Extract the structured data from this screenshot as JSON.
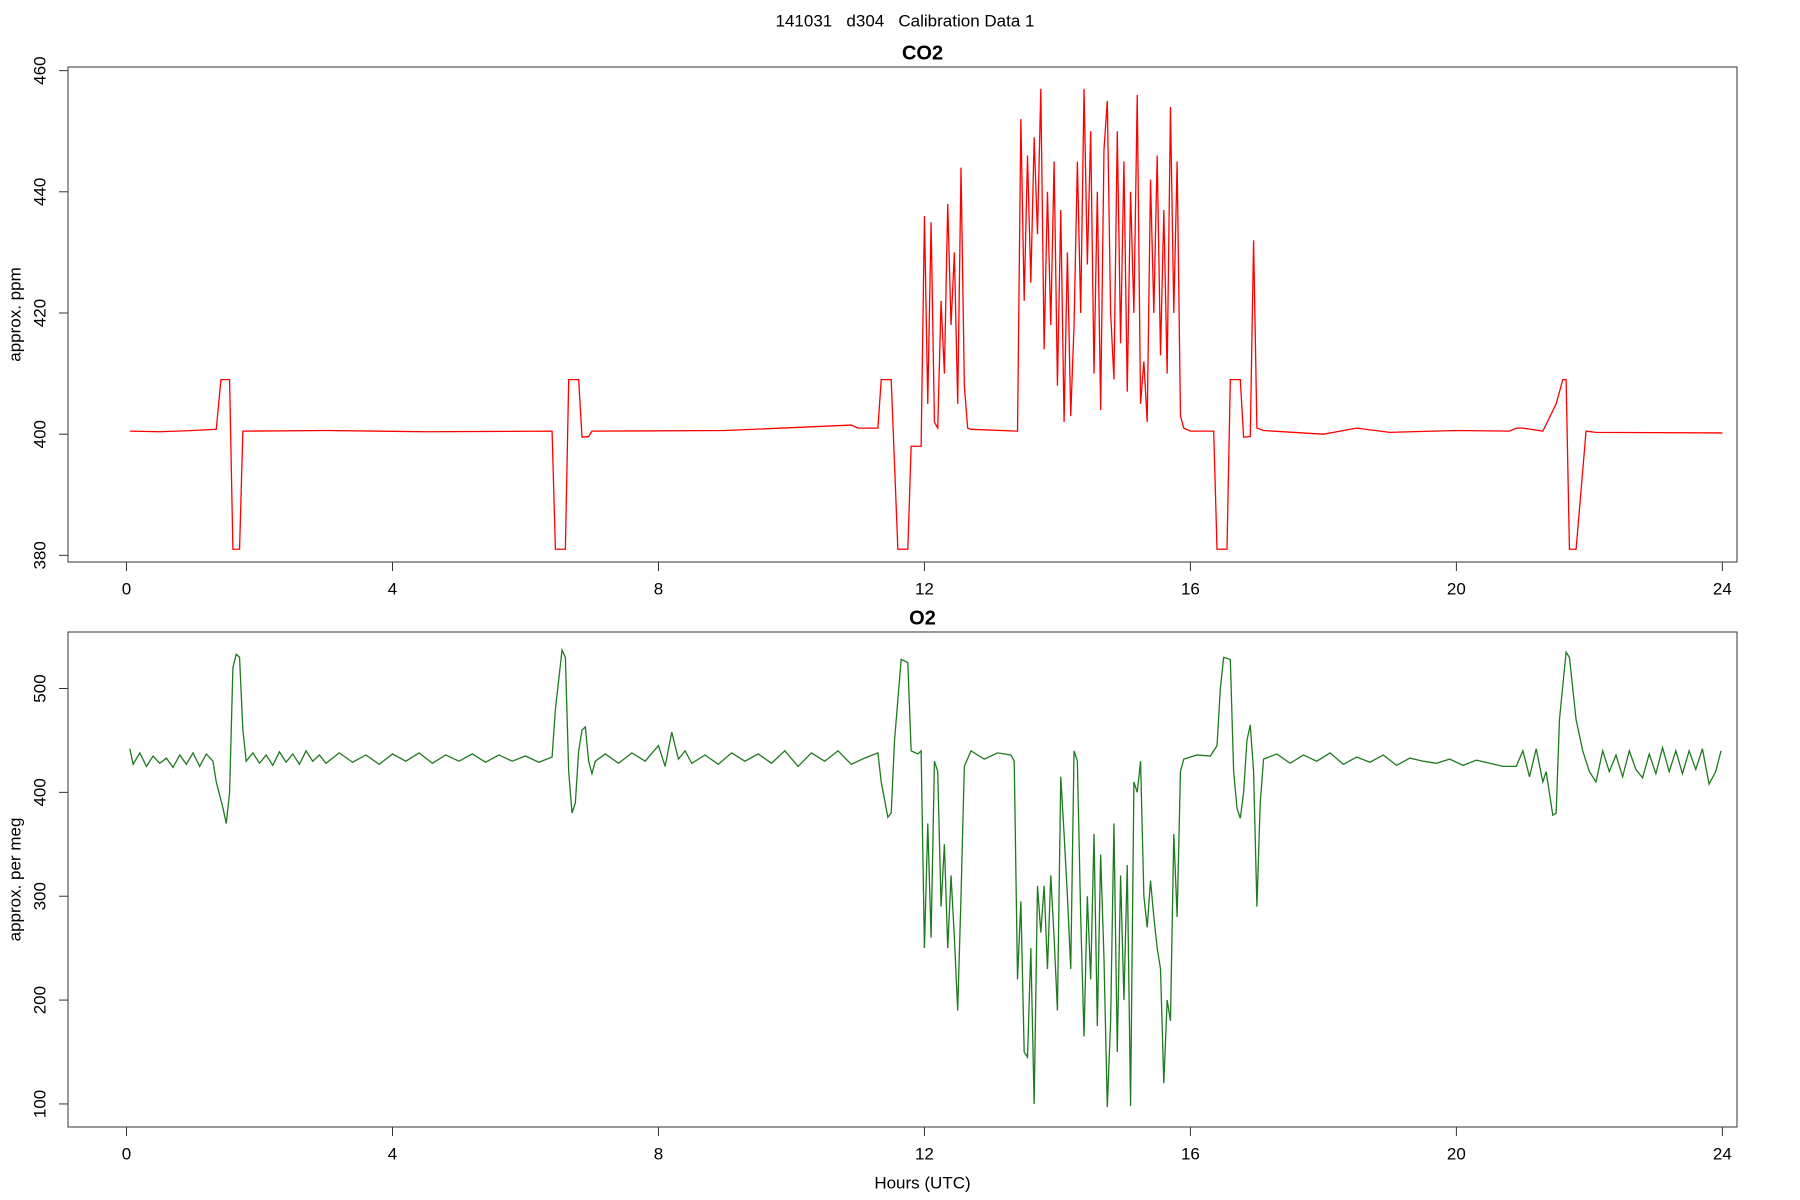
{
  "title": "141031   d304   Calibration Data 1",
  "chart_data": [
    {
      "type": "line",
      "title": "CO2",
      "ylabel": "approx. ppm",
      "color": "#ff0000",
      "xlim": [
        -0.88,
        24.22
      ],
      "xticks": [
        0,
        4,
        8,
        12,
        16,
        20,
        24
      ],
      "ylim": [
        378.9,
        460.6
      ],
      "yticks": [
        380,
        400,
        420,
        440,
        460
      ],
      "x": [
        0.05,
        0.5,
        1.0,
        1.35,
        1.42,
        1.55,
        1.6,
        1.7,
        1.75,
        3.0,
        4.5,
        6.4,
        6.45,
        6.6,
        6.65,
        6.8,
        6.85,
        6.95,
        7.0,
        9.0,
        10.9,
        11.0,
        11.3,
        11.35,
        11.5,
        11.6,
        11.75,
        11.8,
        11.95,
        12.0,
        12.05,
        12.1,
        12.15,
        12.2,
        12.25,
        12.3,
        12.35,
        12.4,
        12.45,
        12.5,
        12.55,
        12.6,
        12.65,
        12.7,
        13.4,
        13.45,
        13.5,
        13.55,
        13.6,
        13.65,
        13.7,
        13.75,
        13.8,
        13.85,
        13.9,
        13.95,
        14.0,
        14.05,
        14.1,
        14.15,
        14.2,
        14.25,
        14.3,
        14.35,
        14.4,
        14.45,
        14.5,
        14.55,
        14.6,
        14.65,
        14.7,
        14.75,
        14.8,
        14.85,
        14.9,
        14.95,
        15.0,
        15.05,
        15.1,
        15.15,
        15.2,
        15.25,
        15.3,
        15.35,
        15.4,
        15.45,
        15.5,
        15.55,
        15.6,
        15.65,
        15.7,
        15.75,
        15.8,
        15.85,
        15.9,
        16.0,
        16.35,
        16.4,
        16.55,
        16.6,
        16.75,
        16.8,
        16.9,
        16.95,
        17.0,
        17.1,
        18.0,
        18.5,
        19.0,
        20.0,
        20.8,
        20.9,
        21.0,
        21.3,
        21.5,
        21.6,
        21.65,
        21.7,
        21.8,
        21.95,
        22.1,
        24.0
      ],
      "values": [
        400.5,
        400.4,
        400.6,
        400.8,
        409,
        409,
        381,
        381,
        400.5,
        400.6,
        400.4,
        400.5,
        381,
        381,
        409,
        409,
        399.5,
        399.6,
        400.5,
        400.6,
        401.5,
        401,
        401,
        409,
        409,
        381,
        381,
        398,
        398,
        436,
        405,
        435,
        402,
        401,
        422,
        410,
        438,
        418,
        430,
        405,
        444,
        408,
        401,
        400.8,
        400.5,
        452,
        422,
        446,
        425,
        449,
        433,
        457,
        414,
        440,
        418,
        445,
        408,
        437,
        402,
        430,
        403,
        418,
        445,
        420,
        457,
        428,
        450,
        410,
        440,
        404,
        447,
        455,
        420,
        409,
        450,
        415,
        445,
        407,
        440,
        420,
        456,
        405,
        412,
        402,
        442,
        420,
        446,
        413,
        437,
        410,
        454,
        420,
        445,
        403,
        401,
        400.5,
        400.5,
        381,
        381,
        409,
        409,
        399.5,
        399.6,
        432,
        401,
        400.6,
        400,
        401,
        400.3,
        400.6,
        400.5,
        401,
        401,
        400.5,
        405,
        409,
        409,
        381,
        381,
        400.5,
        400.3,
        400.2
      ]
    },
    {
      "type": "line",
      "title": "O2",
      "ylabel": "approx. per meg",
      "xlabel": "Hours (UTC)",
      "color": "#1e7a1e",
      "xlim": [
        -0.88,
        24.22
      ],
      "xticks": [
        0,
        4,
        8,
        12,
        16,
        20,
        24
      ],
      "ylim": [
        77.8,
        554.4
      ],
      "yticks": [
        100,
        200,
        300,
        400,
        500
      ],
      "x": [
        0.05,
        0.1,
        0.2,
        0.3,
        0.4,
        0.5,
        0.6,
        0.7,
        0.8,
        0.9,
        1.0,
        1.1,
        1.2,
        1.3,
        1.35,
        1.45,
        1.5,
        1.55,
        1.6,
        1.65,
        1.7,
        1.75,
        1.8,
        1.9,
        2.0,
        2.1,
        2.2,
        2.3,
        2.4,
        2.5,
        2.6,
        2.7,
        2.8,
        2.9,
        3.0,
        3.2,
        3.4,
        3.6,
        3.8,
        4.0,
        4.2,
        4.4,
        4.6,
        4.8,
        5.0,
        5.2,
        5.4,
        5.6,
        5.8,
        6.0,
        6.2,
        6.4,
        6.45,
        6.55,
        6.6,
        6.65,
        6.7,
        6.75,
        6.8,
        6.85,
        6.9,
        6.95,
        7.0,
        7.05,
        7.2,
        7.4,
        7.6,
        7.8,
        8.0,
        8.1,
        8.2,
        8.3,
        8.4,
        8.5,
        8.7,
        8.9,
        9.1,
        9.3,
        9.5,
        9.7,
        9.9,
        10.1,
        10.3,
        10.5,
        10.7,
        10.9,
        11.1,
        11.3,
        11.35,
        11.45,
        11.5,
        11.55,
        11.65,
        11.75,
        11.8,
        11.9,
        11.95,
        12.0,
        12.05,
        12.1,
        12.15,
        12.2,
        12.25,
        12.3,
        12.35,
        12.4,
        12.45,
        12.5,
        12.55,
        12.6,
        12.7,
        12.9,
        13.1,
        13.3,
        13.35,
        13.4,
        13.45,
        13.5,
        13.55,
        13.6,
        13.65,
        13.7,
        13.75,
        13.8,
        13.85,
        13.9,
        13.95,
        14.0,
        14.05,
        14.1,
        14.15,
        14.2,
        14.25,
        14.3,
        14.35,
        14.4,
        14.45,
        14.5,
        14.55,
        14.6,
        14.65,
        14.7,
        14.75,
        14.8,
        14.85,
        14.9,
        14.95,
        15.0,
        15.05,
        15.1,
        15.15,
        15.2,
        15.25,
        15.3,
        15.35,
        15.4,
        15.45,
        15.5,
        15.55,
        15.6,
        15.65,
        15.7,
        15.75,
        15.8,
        15.85,
        15.9,
        16.1,
        16.3,
        16.4,
        16.45,
        16.5,
        16.6,
        16.65,
        16.7,
        16.75,
        16.8,
        16.85,
        16.9,
        16.95,
        17.0,
        17.05,
        17.1,
        17.3,
        17.5,
        17.7,
        17.9,
        18.1,
        18.3,
        18.5,
        18.7,
        18.9,
        19.1,
        19.3,
        19.5,
        19.7,
        19.9,
        20.1,
        20.3,
        20.5,
        20.7,
        20.9,
        21.0,
        21.1,
        21.2,
        21.3,
        21.35,
        21.45,
        21.5,
        21.55,
        21.65,
        21.7,
        21.8,
        21.9,
        22.0,
        22.1,
        22.2,
        22.3,
        22.4,
        22.5,
        22.6,
        22.7,
        22.8,
        22.9,
        23.0,
        23.1,
        23.2,
        23.3,
        23.4,
        23.5,
        23.6,
        23.7,
        23.8,
        23.9,
        23.98
      ],
      "values": [
        442,
        427,
        438,
        425,
        435,
        428,
        433,
        424,
        436,
        427,
        438,
        425,
        437,
        430,
        410,
        385,
        370,
        400,
        520,
        533,
        530,
        460,
        430,
        438,
        428,
        436,
        426,
        439,
        429,
        437,
        427,
        440,
        430,
        436,
        428,
        438,
        429,
        436,
        427,
        437,
        430,
        438,
        428,
        436,
        430,
        437,
        429,
        436,
        430,
        435,
        429,
        434,
        480,
        537,
        530,
        420,
        380,
        390,
        440,
        460,
        463,
        430,
        418,
        430,
        437,
        428,
        438,
        430,
        445,
        425,
        458,
        432,
        440,
        428,
        436,
        427,
        438,
        430,
        437,
        428,
        440,
        425,
        438,
        430,
        440,
        427,
        433,
        438,
        410,
        376,
        380,
        450,
        528,
        525,
        440,
        437,
        440,
        250,
        370,
        260,
        430,
        420,
        290,
        350,
        250,
        320,
        260,
        190,
        300,
        425,
        440,
        432,
        438,
        436,
        430,
        220,
        295,
        150,
        145,
        250,
        100,
        310,
        265,
        310,
        230,
        320,
        260,
        190,
        415,
        360,
        300,
        230,
        440,
        430,
        280,
        165,
        300,
        220,
        360,
        175,
        340,
        240,
        97,
        180,
        370,
        150,
        320,
        200,
        330,
        98,
        410,
        400,
        430,
        300,
        270,
        315,
        280,
        250,
        230,
        120,
        200,
        180,
        360,
        280,
        420,
        432,
        436,
        435,
        445,
        500,
        530,
        528,
        420,
        385,
        375,
        400,
        450,
        465,
        420,
        290,
        390,
        432,
        437,
        428,
        436,
        430,
        438,
        427,
        434,
        429,
        436,
        426,
        433,
        430,
        428,
        432,
        426,
        431,
        428,
        425,
        425,
        440,
        415,
        442,
        410,
        420,
        378,
        380,
        470,
        535,
        530,
        470,
        440,
        420,
        410,
        440,
        420,
        436,
        415,
        440,
        422,
        414,
        437,
        418,
        443,
        420,
        440,
        418,
        440,
        422,
        442,
        408,
        420,
        440
      ]
    }
  ]
}
